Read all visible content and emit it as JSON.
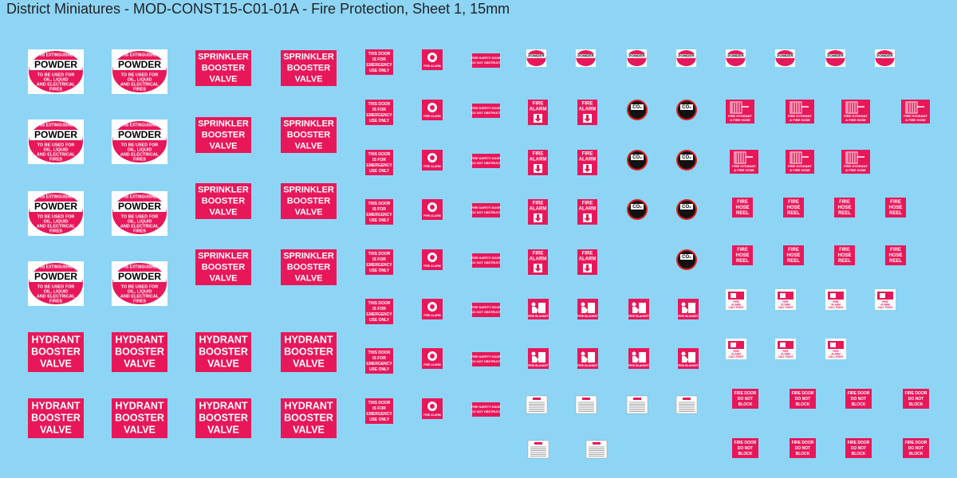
{
  "header": {
    "title": "District Miniatures - MOD-CONST15-C01-01A - Fire Protection, Sheet 1, 15mm"
  },
  "signs": {
    "powder": {
      "arc": "THIS EXTINGUISHER",
      "label": "POWDER",
      "lines": [
        "TO BE USED FOR",
        "OIL, LIQUID",
        "AND ELECTRICAL",
        "FIRES"
      ]
    },
    "sprinkler": {
      "lines": [
        "SPRINKLER",
        "BOOSTER",
        "VALVE"
      ]
    },
    "hydrant": {
      "lines": [
        "HYDRANT",
        "BOOSTER",
        "VALVE"
      ]
    },
    "emergency_door": {
      "lines": [
        "THIS DOOR",
        "IS FOR",
        "EMERGENCY",
        "USE ONLY"
      ]
    },
    "fire_alarm_round": {
      "label": "FIRE ALARM"
    },
    "fire_safety_door": {
      "lines": [
        "FIRE SAFETY DOOR",
        "DO NOT OBSTRUCT"
      ]
    },
    "fire_alarm_arrow": {
      "lines": [
        "FIRE",
        "ALARM"
      ]
    },
    "co2": {
      "label": "CO₂"
    },
    "hydrant_hose": {
      "lines": [
        "FIRE HYDRANT",
        "& FIRE HOSE"
      ]
    },
    "hose_reel": {
      "lines": [
        "FIRE",
        "HOSE",
        "REEL"
      ]
    },
    "fire_blanket": {
      "label": "FIRE BLANKET"
    },
    "call_point": {
      "lines": [
        "FIRE",
        "ALARM",
        "CALL POINT"
      ]
    },
    "fire_door": {
      "lines": [
        "FIRE DOOR",
        "DO NOT",
        "BLOCK"
      ]
    }
  }
}
